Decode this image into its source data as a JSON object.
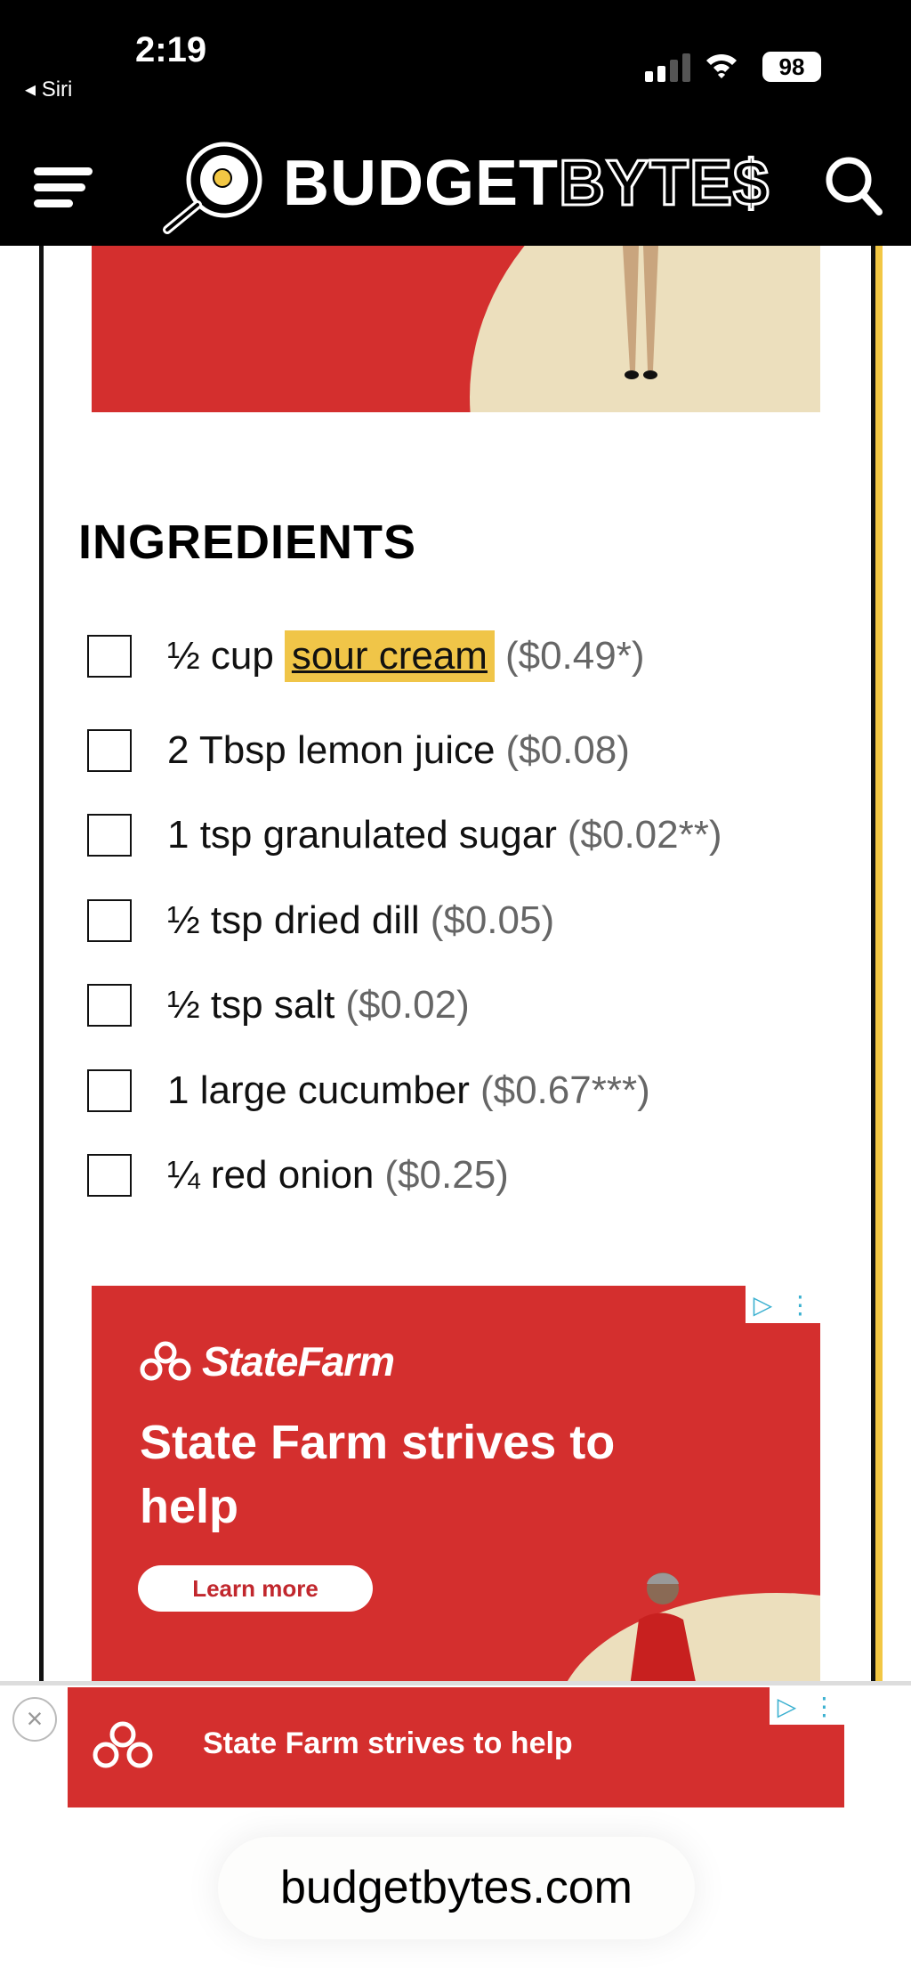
{
  "status_bar": {
    "time": "2:19",
    "back_app": "◂ Siri",
    "battery": "98",
    "wifi_icon": "wifi-icon",
    "signal_icon": "signal-icon"
  },
  "header": {
    "logo_bold": "BUDGET",
    "logo_outline": "BYTE$",
    "menu_icon": "hamburger-icon",
    "search_icon": "search-icon"
  },
  "ingredients": {
    "title": "INGREDIENTS",
    "items": [
      {
        "text": "½ cup",
        "link": "sour cream",
        "price": "($0.49*)"
      },
      {
        "text": "2 Tbsp lemon juice",
        "price": "($0.08)"
      },
      {
        "text": "1 tsp granulated sugar",
        "price": "($0.02**)"
      },
      {
        "text": "½ tsp dried dill",
        "price": "($0.05)"
      },
      {
        "text": "½ tsp salt",
        "price": "($0.02)"
      },
      {
        "text": "1 large cucumber",
        "price": "($0.67***)"
      },
      {
        "text": "¼ red onion",
        "price": "($0.25)"
      }
    ],
    "highlight_color": "#f0c548"
  },
  "ad_mid": {
    "brand": "StateFarm",
    "headline": "State Farm strives to help",
    "cta": "Learn more",
    "color": "#d42f2e"
  },
  "ad_bottom": {
    "text": "State Farm strives to help",
    "close": "×"
  },
  "browser": {
    "url": "budgetbytes.com"
  }
}
